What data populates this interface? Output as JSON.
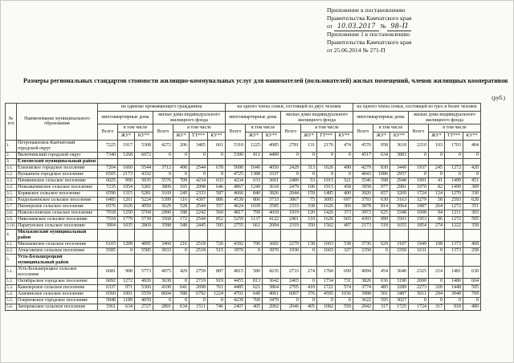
{
  "appendix": {
    "line1": "Приложение к постановлению",
    "line2": "Правительства Камчатского края",
    "from_label": "от",
    "date_handwritten": "10.03.2017",
    "no_label": "№",
    "no_handwritten": "98-П",
    "line4": "Приложение 1 к постановлению",
    "line5": "Правительства Камчатского края",
    "line6": "от 25.06.2014   № 271-П"
  },
  "title": "Размеры  региональных стандартов  стоимости  жилищно-коммунальных   услуг для нанимателей (пользователей) жилых помещений, членов жилищных кооперативов",
  "currency_note": "(руб.)",
  "table": {
    "headers": {
      "num": "№\nп/п",
      "name": "Наименование муниципального образования",
      "groups": [
        "на одиноко проживающего гражданина",
        "на одного члена семьи, состоящей из двух человек",
        "на одного члена семьи, состоящей из трех и более человек"
      ],
      "multi_family": "многоквартирные дома",
      "individual": "жилые дома индивидуального жилищного фонда",
      "total": "Всего",
      "including": "в том числе",
      "zhu": "ЖУ*",
      "tt": "ТТ***",
      "ku": "КУ**"
    },
    "rows": [
      {
        "num": "1.",
        "name": "Петропавловск-Камчатский городской округ",
        "section": false,
        "values": [
          "7225",
          "1917",
          "5308",
          "4272",
          "206",
          "3405",
          "661",
          "5310",
          "1225",
          "4085",
          "2781",
          "131",
          "2176",
          "474",
          "4576",
          "958",
          "3618",
          "2210",
          "103",
          "1703",
          "404"
        ]
      },
      {
        "num": "2.",
        "name": "Вилючинский городской округ",
        "section": false,
        "values": [
          "7340",
          "1268",
          "6072",
          "0",
          "0",
          "0",
          "0",
          "5300",
          "811",
          "4489",
          "0",
          "0",
          "0",
          "0",
          "4517",
          "634",
          "3883",
          "0",
          "0",
          "0",
          "0"
        ]
      },
      {
        "num": "3.",
        "name": "Елизовский муниципальный район",
        "section": true,
        "values": []
      },
      {
        "num": "3.1.",
        "name": "Елизовское городское поселение",
        "section": false,
        "values": [
          "7204",
          "1660",
          "5544",
          "3712",
          "490",
          "2544",
          "678",
          "5090",
          "1040",
          "4050",
          "2429",
          "313",
          "1626",
          "490",
          "4279",
          "830",
          "3449",
          "1937",
          "245",
          "1272",
          "420"
        ]
      },
      {
        "num": "3.2.",
        "name": "Вулканное городское поселение",
        "section": false,
        "values": [
          "6505",
          "2173",
          "4332",
          "0",
          "0",
          "0",
          "0",
          "4725",
          "1388",
          "3337",
          "0",
          "0",
          "0",
          "0",
          "4043",
          "1086",
          "2957",
          "0",
          "0",
          "0",
          "0"
        ]
      },
      {
        "num": "3.3.",
        "name": "Начикинское сельское поселение",
        "section": false,
        "values": [
          "6025",
          "990",
          "5035",
          "5576",
          "709",
          "4234",
          "633",
          "4234",
          "633",
          "3601",
          "2489",
          "53",
          "1915",
          "521",
          "3546",
          "598",
          "2948",
          "1991",
          "41",
          "1499",
          "451"
        ]
      },
      {
        "num": "3.4.",
        "name": "Новоавачинское сельское поселение",
        "section": false,
        "values": [
          "7235",
          "1954",
          "5281",
          "3809",
          "165",
          "2998",
          "646",
          "4867",
          "1249",
          "3618",
          "2479",
          "106",
          "1915",
          "458",
          "3958",
          "977",
          "2981",
          "1970",
          "82",
          "1499",
          "389"
        ]
      },
      {
        "num": "3.5.",
        "name": "Корякское сельское поселение",
        "section": false,
        "values": [
          "6596",
          "1315",
          "5281",
          "3169",
          "249",
          "2333",
          "587",
          "4666",
          "840",
          "3826",
          "2044",
          "159",
          "1485",
          "400",
          "3926",
          "657",
          "3269",
          "1724",
          "124",
          "1270",
          "330"
        ]
      },
      {
        "num": "3.6.",
        "name": "Раздольненское сельское поселение",
        "section": false,
        "values": [
          "6485",
          "1261",
          "5224",
          "5399",
          "116",
          "4397",
          "886",
          "4539",
          "806",
          "3733",
          "3867",
          "75",
          "3095",
          "697",
          "3793",
          "630",
          "3163",
          "3279",
          "58",
          "2593",
          "628"
        ]
      },
      {
        "num": "3.7.",
        "name": "Пионерское сельское поселение",
        "section": false,
        "values": [
          "6576",
          "1626",
          "4950",
          "3629",
          "528",
          "2544",
          "557",
          "4624",
          "1039",
          "3585",
          "2333",
          "338",
          "1626",
          "369",
          "3878",
          "814",
          "3064",
          "1887",
          "264",
          "1272",
          "351"
        ]
      },
      {
        "num": "3.8.",
        "name": "Новолесновское сельское поселение",
        "section": false,
        "values": [
          "7018",
          "1250",
          "5768",
          "2990",
          "188",
          "2242",
          "560",
          "4817",
          "799",
          "4018",
          "1919",
          "120",
          "1426",
          "373",
          "3973",
          "625",
          "3348",
          "1608",
          "94",
          "1211",
          "303"
        ]
      },
      {
        "num": "3.9.",
        "name": "Николаевское сельское поселение",
        "section": false,
        "values": [
          "7518",
          "1779",
          "5739",
          "3568",
          "172",
          "2544",
          "852",
          "5259",
          "1137",
          "4122",
          "2401",
          "110",
          "1626",
          "665",
          "4393",
          "890",
          "3503",
          "1953",
          "86",
          "1272",
          "595"
        ]
      },
      {
        "num": "3.10.",
        "name": "Паратунское сельское поселение",
        "section": false,
        "values": [
          "3904",
          "1035",
          "2869",
          "3588",
          "548",
          "2445",
          "595",
          "2755",
          "661",
          "2094",
          "2319",
          "350",
          "1562",
          "407",
          "2173",
          "518",
          "1655",
          "1854",
          "274",
          "1222",
          "358"
        ]
      },
      {
        "num": "4.",
        "name": "Мильковский муниципальный район",
        "section": true,
        "values": []
      },
      {
        "num": "4.1.",
        "name": "Мильковское сельское поселение",
        "section": false,
        "values": [
          "6103",
          "1208",
          "4895",
          "3460",
          "216",
          "2518",
          "726",
          "4392",
          "790",
          "3602",
          "2279",
          "138",
          "1603",
          "538",
          "3736",
          "629",
          "3107",
          "1949",
          "108",
          "1373",
          "468"
        ]
      },
      {
        "num": "4.2.",
        "name": "Атласовское сельское поселение",
        "section": false,
        "values": [
          "5585",
          "0",
          "5585",
          "3033",
          "0",
          "2518",
          "515",
          "3970",
          "0",
          "3970",
          "1930",
          "0",
          "1603",
          "327",
          "3350",
          "0",
          "3350",
          "1631",
          "0",
          "1373",
          "258"
        ]
      },
      {
        "num": "5.",
        "name": "Усть-Большерецкий муниципальный район",
        "section": true,
        "values": []
      },
      {
        "num": "5.1.",
        "name": "Усть-Большерецкое сельское поселение",
        "section": false,
        "values": [
          "6681",
          "908",
          "5773",
          "4075",
          "429",
          "2759",
          "887",
          "4815",
          "580",
          "4235",
          "2733",
          "274",
          "1760",
          "699",
          "4094",
          "454",
          "3640",
          "2325",
          "214",
          "1481",
          "630"
        ]
      },
      {
        "num": "5.2.",
        "name": "Октябрьское городское поселение",
        "section": false,
        "values": [
          "6092",
          "1272",
          "4820",
          "3638",
          "0",
          "2719",
          "919",
          "4455",
          "813",
          "3642",
          "2465",
          "0",
          "1734",
          "731",
          "3826",
          "636",
          "3190",
          "2090",
          "0",
          "1486",
          "604"
        ]
      },
      {
        "num": "5.3.",
        "name": "Кавалерское сельское поселение",
        "section": false,
        "values": [
          "6337",
          "971",
          "5366",
          "4100",
          "641",
          "2698",
          "761",
          "4485",
          "621",
          "3864",
          "2705",
          "410",
          "1721",
          "574",
          "3774",
          "485",
          "3289",
          "2273",
          "320",
          "1448",
          "505"
        ]
      },
      {
        "num": "5.4.",
        "name": "Апачинское сельское поселение",
        "section": false,
        "values": [
          "6560",
          "1001",
          "5559",
          "8604",
          "588",
          "6792",
          "1224",
          "4701",
          "640",
          "4061",
          "6007",
          "376",
          "4595",
          "1036",
          "3988",
          "501",
          "3487",
          "5011",
          "294",
          "3948",
          "769"
        ]
      },
      {
        "num": "5.5.",
        "name": "Озерновское городское поселение",
        "section": false,
        "values": [
          "5848",
          "1189",
          "4659",
          "0",
          "0",
          "0",
          "0",
          "4239",
          "760",
          "3479",
          "0",
          "0",
          "0",
          "0",
          "3622",
          "595",
          "3027",
          "0",
          "0",
          "0",
          "0"
        ]
      },
      {
        "num": "5.6.",
        "name": "Запорожское сельское поселение",
        "section": false,
        "values": [
          "3361",
          "634",
          "2727",
          "2891",
          "634",
          "1511",
          "746",
          "2407",
          "405",
          "2002",
          "2046",
          "405",
          "1082",
          "559",
          "2042",
          "317",
          "1725",
          "1724",
          "317",
          "918",
          "489"
        ]
      }
    ]
  }
}
